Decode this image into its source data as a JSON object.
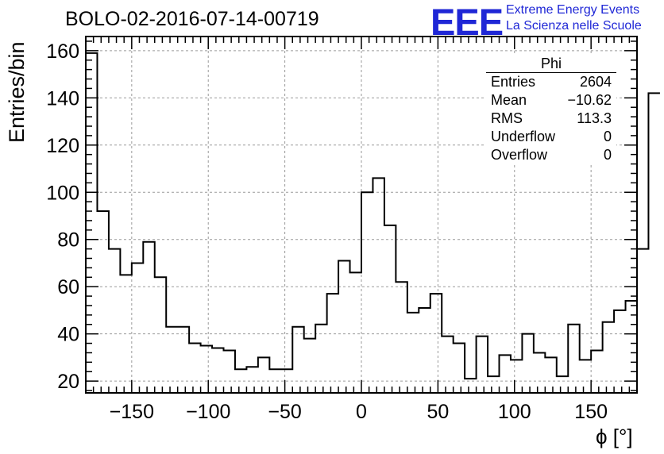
{
  "title": "BOLO-02-2016-07-14-00719",
  "logo": {
    "mark": "EEE",
    "line1": "Extreme Energy Events",
    "line2": "La Scienza nelle Scuole",
    "color": "#1f27d6"
  },
  "stats": {
    "title": "Phi",
    "rows": [
      {
        "label": "Entries",
        "value": "2604"
      },
      {
        "label": "Mean",
        "value": "−10.62"
      },
      {
        "label": "RMS",
        "value": "113.3"
      },
      {
        "label": "Underflow",
        "value": "0"
      },
      {
        "label": "Overflow",
        "value": "0"
      }
    ]
  },
  "chart_data": {
    "type": "bar",
    "histogram": "step",
    "xlabel": "ϕ [°]",
    "ylabel": "Entries/bin",
    "xlim": [
      -180,
      180
    ],
    "ylim": [
      15,
      166
    ],
    "bin_width": 7.5,
    "grid": true,
    "xticks": [
      -150,
      -100,
      -50,
      0,
      50,
      100,
      150
    ],
    "yticks": [
      20,
      40,
      60,
      80,
      100,
      120,
      140,
      160
    ],
    "values": [
      159,
      92,
      76,
      65,
      70,
      79,
      64,
      43,
      43,
      36,
      35,
      34,
      33,
      25,
      26,
      30,
      25,
      25,
      43,
      38,
      44,
      57,
      71,
      66,
      100,
      106,
      86,
      62,
      49,
      51,
      57,
      39,
      36,
      21,
      39,
      22,
      31,
      29,
      40,
      32,
      30,
      22,
      44,
      29,
      33,
      45,
      50,
      54,
      76,
      142
    ]
  }
}
